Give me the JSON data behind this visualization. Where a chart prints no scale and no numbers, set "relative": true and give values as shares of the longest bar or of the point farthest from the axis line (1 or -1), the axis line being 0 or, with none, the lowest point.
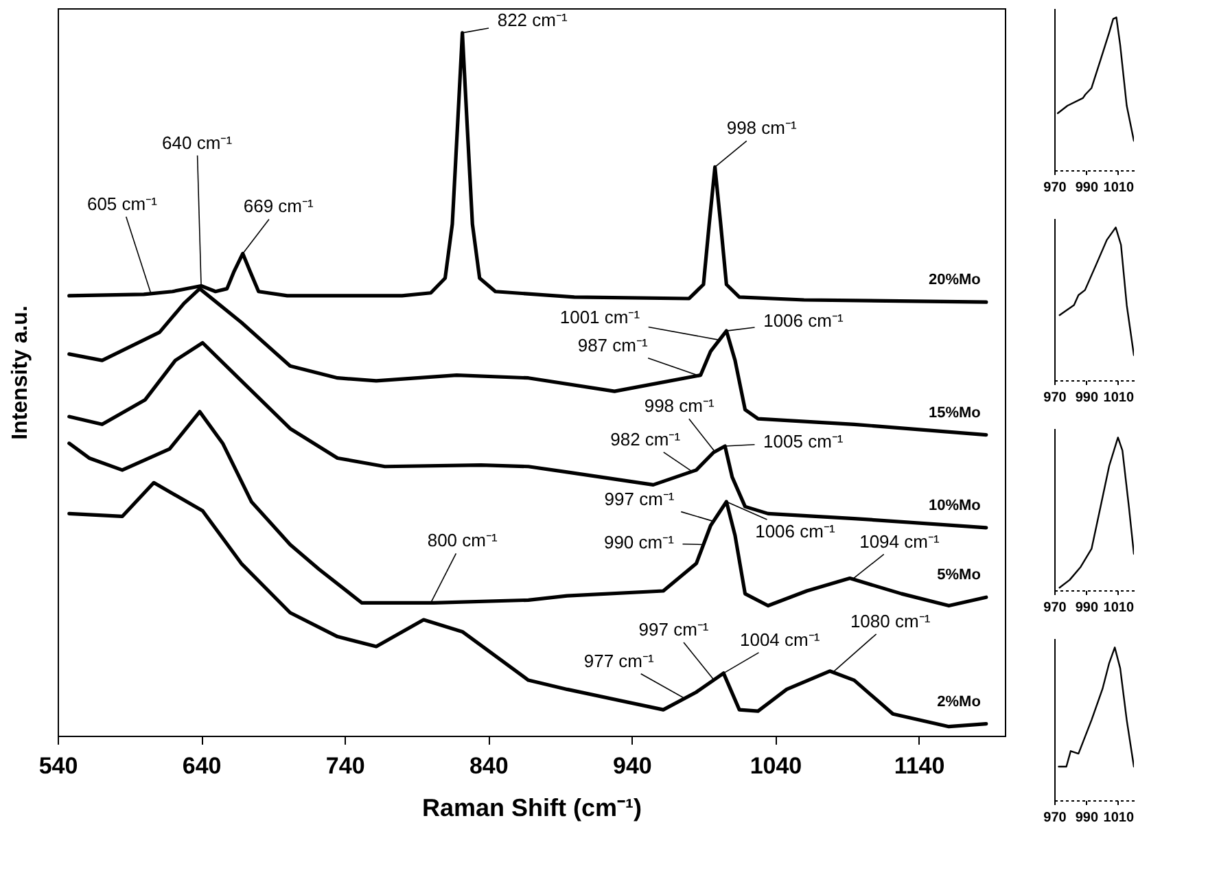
{
  "chart_data": [
    {
      "type": "line",
      "relative": true,
      "xlabel": "Raman Shift (cm⁻¹)",
      "ylabel": "Intensity a.u.",
      "xlim": [
        540,
        1200
      ],
      "xticks": [
        540,
        640,
        740,
        840,
        940,
        1040,
        1140
      ],
      "series": [
        {
          "name": "20%Mo",
          "color": "#000000",
          "x": [
            548,
            600,
            620,
            640,
            650,
            658,
            663,
            669,
            674,
            680,
            700,
            780,
            800,
            810,
            815,
            819,
            822,
            825,
            829,
            834,
            845,
            900,
            980,
            990,
            994,
            998,
            1002,
            1006,
            1015,
            1060,
            1187
          ],
          "values": [
            0.626,
            0.628,
            0.632,
            0.64,
            0.632,
            0.636,
            0.661,
            0.686,
            0.661,
            0.632,
            0.626,
            0.626,
            0.63,
            0.651,
            0.728,
            0.882,
            1.0,
            0.882,
            0.728,
            0.651,
            0.632,
            0.624,
            0.622,
            0.642,
            0.728,
            0.809,
            0.728,
            0.642,
            0.624,
            0.62,
            0.617
          ]
        },
        {
          "name": "15%Mo",
          "color": "#000000",
          "x": [
            548,
            571,
            611,
            628,
            639,
            668,
            702,
            735,
            762,
            818,
            868,
            928,
            988,
            995,
            1006,
            1012,
            1019,
            1028,
            1095,
            1187
          ],
          "values": [
            0.543,
            0.534,
            0.574,
            0.615,
            0.636,
            0.588,
            0.526,
            0.509,
            0.505,
            0.513,
            0.509,
            0.49,
            0.513,
            0.547,
            0.576,
            0.534,
            0.464,
            0.451,
            0.443,
            0.428
          ]
        },
        {
          "name": "10%Mo",
          "color": "#000000",
          "x": [
            548,
            571,
            601,
            622,
            641,
            668,
            702,
            735,
            768,
            835,
            868,
            895,
            955,
            985,
            997,
            1005,
            1010,
            1019,
            1035,
            1095,
            1187
          ],
          "values": [
            0.454,
            0.443,
            0.478,
            0.534,
            0.559,
            0.505,
            0.437,
            0.395,
            0.383,
            0.385,
            0.383,
            0.375,
            0.357,
            0.378,
            0.403,
            0.412,
            0.368,
            0.326,
            0.316,
            0.309,
            0.296
          ]
        },
        {
          "name": "5%Mo",
          "color": "#000000",
          "x": [
            548,
            562,
            585,
            618,
            639,
            655,
            675,
            702,
            722,
            752,
            802,
            868,
            895,
            962,
            985,
            995,
            1006,
            1012,
            1019,
            1035,
            1062,
            1092,
            1128,
            1161,
            1187
          ],
          "values": [
            0.416,
            0.395,
            0.378,
            0.408,
            0.461,
            0.416,
            0.333,
            0.272,
            0.237,
            0.189,
            0.189,
            0.193,
            0.199,
            0.206,
            0.245,
            0.299,
            0.333,
            0.285,
            0.202,
            0.185,
            0.206,
            0.224,
            0.202,
            0.185,
            0.197
          ]
        },
        {
          "name": "2%Mo",
          "color": "#000000",
          "x": [
            548,
            585,
            607,
            641,
            668,
            702,
            735,
            762,
            795,
            822,
            868,
            895,
            962,
            985,
            1004,
            1015,
            1028,
            1048,
            1078,
            1095,
            1122,
            1161,
            1187
          ],
          "values": [
            0.316,
            0.312,
            0.36,
            0.32,
            0.245,
            0.175,
            0.141,
            0.127,
            0.165,
            0.148,
            0.079,
            0.066,
            0.037,
            0.062,
            0.089,
            0.037,
            0.035,
            0.066,
            0.092,
            0.079,
            0.031,
            0.013,
            0.017
          ]
        }
      ],
      "annotations": [
        {
          "text": "605 cm⁻¹",
          "x": 605,
          "y": 0.629
        },
        {
          "text": "640 cm⁻¹",
          "x": 640,
          "y": 0.64
        },
        {
          "text": "669 cm⁻¹",
          "x": 669,
          "y": 0.686
        },
        {
          "text": "822 cm⁻¹",
          "x": 822,
          "y": 1.0
        },
        {
          "text": "998 cm⁻¹",
          "x": 998,
          "y": 0.809
        },
        {
          "text": "1001 cm⁻¹",
          "x": 1001,
          "y": 0.563
        },
        {
          "text": "1006 cm⁻¹",
          "x": 1006,
          "y": 0.576
        },
        {
          "text": "987 cm⁻¹",
          "x": 987,
          "y": 0.512
        },
        {
          "text": "998 cm⁻¹",
          "x": 998,
          "y": 0.404
        },
        {
          "text": "982 cm⁻¹",
          "x": 982,
          "y": 0.376
        },
        {
          "text": "1005 cm⁻¹",
          "x": 1005,
          "y": 0.412
        },
        {
          "text": "997 cm⁻¹",
          "x": 997,
          "y": 0.305
        },
        {
          "text": "1006 cm⁻¹",
          "x": 1006,
          "y": 0.333
        },
        {
          "text": "990 cm⁻¹",
          "x": 990,
          "y": 0.272
        },
        {
          "text": "1094 cm⁻¹",
          "x": 1094,
          "y": 0.223
        },
        {
          "text": "800 cm⁻¹",
          "x": 800,
          "y": 0.189
        },
        {
          "text": "997 cm⁻¹",
          "x": 997,
          "y": 0.08
        },
        {
          "text": "1004 cm⁻¹",
          "x": 1004,
          "y": 0.089
        },
        {
          "text": "977 cm⁻¹",
          "x": 977,
          "y": 0.053
        },
        {
          "text": "1080 cm⁻¹",
          "x": 1080,
          "y": 0.09
        }
      ]
    },
    {
      "type": "line",
      "relative": true,
      "tick_labels": "x",
      "xlim": [
        970,
        1020
      ],
      "xticks": [
        970,
        990,
        1010
      ],
      "x": [
        972.2,
        978.3,
        988,
        989.5,
        993.4,
        999,
        1004.5,
        1007,
        1009,
        1011.4,
        1015.5,
        1020
      ],
      "series": [
        {
          "color": "#000000",
          "values": [
            0.373,
            0.422,
            0.472,
            0.495,
            0.538,
            0.72,
            0.901,
            0.99,
            1.0,
            0.819,
            0.422,
            0.192
          ]
        }
      ]
    },
    {
      "type": "line",
      "relative": true,
      "tick_labels": "x",
      "xlim": [
        970,
        1020
      ],
      "xticks": [
        970,
        990,
        1010
      ],
      "x": [
        973.3,
        982.4,
        985.2,
        989.3,
        996.2,
        1003,
        1008.6,
        1011.9,
        1015.5,
        1020
      ],
      "series": [
        {
          "color": "#000000",
          "values": [
            0.426,
            0.492,
            0.557,
            0.59,
            0.754,
            0.918,
            1.0,
            0.886,
            0.492,
            0.164
          ]
        }
      ]
    },
    {
      "type": "line",
      "relative": true,
      "tick_labels": "x",
      "xlim": [
        970,
        1020
      ],
      "xticks": [
        970,
        990,
        1010
      ],
      "x": [
        973.3,
        979.7,
        986.6,
        993.4,
        999,
        1004.5,
        1010,
        1012.8,
        1016.9,
        1020
      ],
      "series": [
        {
          "color": "#000000",
          "values": [
            0.017,
            0.068,
            0.153,
            0.271,
            0.543,
            0.814,
            1.0,
            0.915,
            0.543,
            0.238
          ]
        }
      ]
    },
    {
      "type": "line",
      "relative": true,
      "tick_labels": "x",
      "xlim": [
        970,
        1020
      ],
      "xticks": [
        970,
        990,
        1010
      ],
      "x": [
        972.8,
        977.6,
        980.3,
        985.2,
        993.4,
        1000.3,
        1004.5,
        1008,
        1011.4,
        1015.5,
        1020
      ],
      "series": [
        {
          "color": "#000000",
          "values": [
            0.22,
            0.22,
            0.322,
            0.305,
            0.525,
            0.729,
            0.898,
            1.0,
            0.864,
            0.525,
            0.22
          ]
        }
      ]
    }
  ]
}
